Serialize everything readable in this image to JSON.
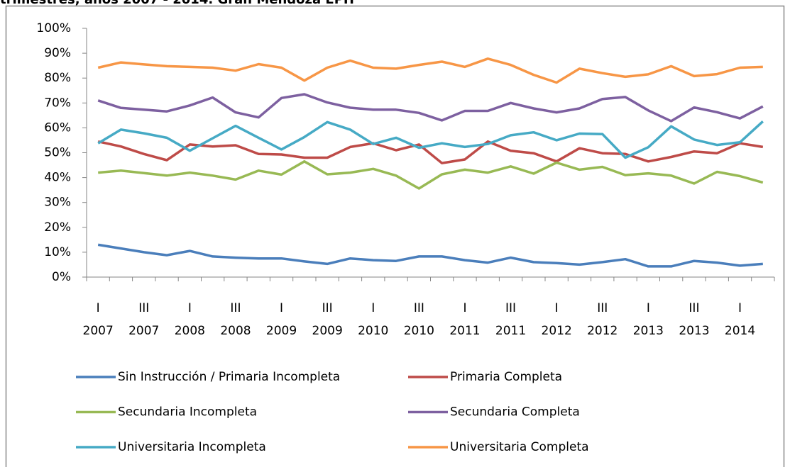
{
  "chart_data": {
    "type": "line",
    "title": "trimestres, años 2007 - 2014. Gran Mendoza EPH",
    "categories": [
      [
        "I",
        "2007"
      ],
      null,
      [
        "III",
        "2007"
      ],
      null,
      [
        "I",
        "2008"
      ],
      null,
      [
        "III",
        "2008"
      ],
      null,
      [
        "I",
        "2009"
      ],
      null,
      [
        "III",
        "2009"
      ],
      null,
      [
        "I",
        "2010"
      ],
      null,
      [
        "III",
        "2010"
      ],
      null,
      [
        "I",
        "2011"
      ],
      null,
      [
        "III",
        "2011"
      ],
      null,
      [
        "I",
        "2012"
      ],
      null,
      [
        "III",
        "2012"
      ],
      null,
      [
        "I",
        "2013"
      ],
      null,
      [
        "III",
        "2013"
      ],
      null,
      [
        "I",
        "2014"
      ],
      null
    ],
    "ylim": [
      0,
      100
    ],
    "yticks": [
      {
        "value": 0,
        "label": "0%"
      },
      {
        "value": 10,
        "label": "10%"
      },
      {
        "value": 20,
        "label": "20%"
      },
      {
        "value": 30,
        "label": "30%"
      },
      {
        "value": 40,
        "label": "40%"
      },
      {
        "value": 50,
        "label": "50%"
      },
      {
        "value": 60,
        "label": "60%"
      },
      {
        "value": 70,
        "label": "70%"
      },
      {
        "value": 80,
        "label": "80%"
      },
      {
        "value": 90,
        "label": "90%"
      },
      {
        "value": 100,
        "label": "100%"
      }
    ],
    "grid": false,
    "legend": "bottom",
    "series": [
      {
        "name": "Sin Instrucción / Primaria Incompleta",
        "color": "#4a7ebb",
        "values": [
          13,
          11.5,
          10,
          8.8,
          10.5,
          8.3,
          7.8,
          7.5,
          7.5,
          6.3,
          5.3,
          7.5,
          6.8,
          6.5,
          8.3,
          8.3,
          6.8,
          5.8,
          7.8,
          6,
          5.6,
          5,
          6,
          7.2,
          4.3,
          4.3,
          6.5,
          5.8,
          4.6,
          5.3
        ]
      },
      {
        "name": "Primaria Completa",
        "color": "#be4b48",
        "values": [
          54.5,
          52.5,
          49.5,
          47,
          53.3,
          52.5,
          53,
          49.5,
          49.3,
          48,
          48,
          52.3,
          53.8,
          51,
          53.3,
          45.8,
          47.3,
          54.5,
          50.8,
          49.8,
          46.5,
          51.8,
          49.8,
          49.5,
          46.5,
          48.3,
          50.5,
          49.8,
          53.8,
          52.3
        ]
      },
      {
        "name": "Secundaria Incompleta",
        "color": "#98b954",
        "values": [
          42,
          42.8,
          41.8,
          40.8,
          42,
          40.8,
          39.2,
          42.8,
          41.2,
          46.5,
          41.3,
          42,
          43.5,
          40.8,
          35.6,
          41.3,
          43.2,
          42,
          44.5,
          41.6,
          46,
          43.2,
          44.3,
          41,
          41.7,
          40.8,
          37.6,
          42.3,
          40.6,
          38
        ]
      },
      {
        "name": "Secundaria Completa",
        "color": "#7d60a0",
        "values": [
          71,
          68,
          67.3,
          66.6,
          69,
          72.2,
          66.2,
          64.2,
          72,
          73.5,
          70.2,
          68.1,
          67.3,
          67.3,
          66,
          63,
          66.8,
          66.8,
          70,
          67.8,
          66.2,
          67.8,
          71.6,
          72.4,
          67,
          62.7,
          68.2,
          66.3,
          63.8,
          68.6
        ]
      },
      {
        "name": "Universitaria Incompleta",
        "color": "#46aac5",
        "values": [
          53.8,
          59.3,
          57.8,
          56,
          50.8,
          55.8,
          60.8,
          56,
          51.3,
          56.3,
          62.3,
          59.3,
          53.5,
          56,
          52,
          53.8,
          52.3,
          53.5,
          57,
          58.2,
          55,
          57.7,
          57.5,
          48,
          52.2,
          60.6,
          55.3,
          53.1,
          54.2,
          62.6
        ]
      },
      {
        "name": "Universitaria Completa",
        "color": "#f79646",
        "values": [
          84.2,
          86.3,
          85.5,
          84.8,
          84.5,
          84.2,
          83,
          85.6,
          84.2,
          79,
          84.2,
          87,
          84.2,
          83.8,
          85.3,
          86.6,
          84.5,
          87.8,
          85.3,
          81.3,
          78.2,
          83.8,
          82,
          80.5,
          81.5,
          84.8,
          80.8,
          81.6,
          84.2,
          84.5
        ]
      }
    ]
  }
}
